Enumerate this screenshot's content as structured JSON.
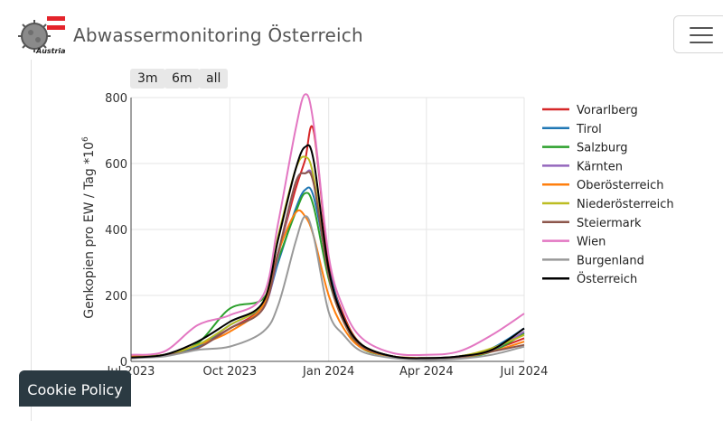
{
  "header": {
    "title": "Abwassermonitoring Österreich",
    "logo_text": "Austria",
    "menu_icon": "hamburger-icon"
  },
  "range_buttons": [
    "3m",
    "6m",
    "all"
  ],
  "cookie": {
    "label": "Cookie Policy"
  },
  "chart_data": {
    "type": "line",
    "ylabel": "Genkopien pro EW / Tag *10",
    "ylabel_superscript": "6",
    "ylim": [
      0,
      800
    ],
    "yticks": [
      0,
      200,
      400,
      600,
      800
    ],
    "xticks": [
      {
        "label": "Jul 2023",
        "x": "2023-07-01"
      },
      {
        "label": "Oct 2023",
        "x": "2023-10-01"
      },
      {
        "label": "Jan 2024",
        "x": "2024-01-01"
      },
      {
        "label": "Apr 2024",
        "x": "2024-04-01"
      },
      {
        "label": "Jul 2024",
        "x": "2024-07-01"
      }
    ],
    "xlim": [
      "2023-07-01",
      "2024-07-01"
    ],
    "grid": true,
    "legend_position": "right",
    "x": [
      "2023-07-01",
      "2023-08-01",
      "2023-09-01",
      "2023-10-01",
      "2023-11-01",
      "2023-11-15",
      "2023-12-01",
      "2023-12-10",
      "2023-12-18",
      "2024-01-01",
      "2024-01-15",
      "2024-02-01",
      "2024-03-01",
      "2024-04-01",
      "2024-05-01",
      "2024-06-01",
      "2024-07-01"
    ],
    "series": [
      {
        "name": "Vorarlberg",
        "color": "#d62728",
        "values": [
          15,
          20,
          50,
          100,
          170,
          330,
          520,
          610,
          700,
          300,
          140,
          50,
          15,
          10,
          15,
          35,
          70
        ]
      },
      {
        "name": "Tirol",
        "color": "#1f77b4",
        "values": [
          10,
          20,
          45,
          110,
          170,
          300,
          460,
          520,
          500,
          280,
          130,
          50,
          15,
          10,
          15,
          40,
          100
        ]
      },
      {
        "name": "Salzburg",
        "color": "#2ca02c",
        "values": [
          15,
          20,
          55,
          160,
          190,
          310,
          450,
          510,
          470,
          250,
          120,
          40,
          15,
          8,
          10,
          30,
          85
        ]
      },
      {
        "name": "Kärnten",
        "color": "#9467bd",
        "values": [
          10,
          18,
          40,
          100,
          160,
          320,
          540,
          570,
          550,
          270,
          130,
          50,
          15,
          10,
          15,
          35,
          90
        ]
      },
      {
        "name": "Oberösterreich",
        "color": "#ff7f0e",
        "values": [
          15,
          18,
          50,
          90,
          170,
          330,
          450,
          440,
          380,
          200,
          100,
          40,
          15,
          10,
          12,
          30,
          60
        ]
      },
      {
        "name": "Niederösterreich",
        "color": "#bcbd22",
        "values": [
          12,
          20,
          50,
          110,
          180,
          380,
          580,
          620,
          560,
          260,
          130,
          50,
          15,
          10,
          15,
          40,
          80
        ]
      },
      {
        "name": "Steiermark",
        "color": "#8c564b",
        "values": [
          10,
          18,
          40,
          100,
          160,
          330,
          540,
          570,
          540,
          260,
          120,
          45,
          15,
          8,
          12,
          30,
          50
        ]
      },
      {
        "name": "Wien",
        "color": "#e377c2",
        "values": [
          20,
          30,
          110,
          140,
          200,
          420,
          700,
          810,
          720,
          320,
          160,
          70,
          25,
          20,
          30,
          80,
          145
        ]
      },
      {
        "name": "Burgenland",
        "color": "#999999",
        "values": [
          10,
          15,
          35,
          45,
          90,
          170,
          360,
          440,
          380,
          150,
          80,
          30,
          10,
          5,
          8,
          20,
          45
        ]
      },
      {
        "name": "Österreich",
        "color": "#000000",
        "values": [
          12,
          20,
          60,
          120,
          180,
          370,
          580,
          650,
          610,
          280,
          130,
          50,
          15,
          10,
          15,
          35,
          100
        ]
      }
    ]
  }
}
